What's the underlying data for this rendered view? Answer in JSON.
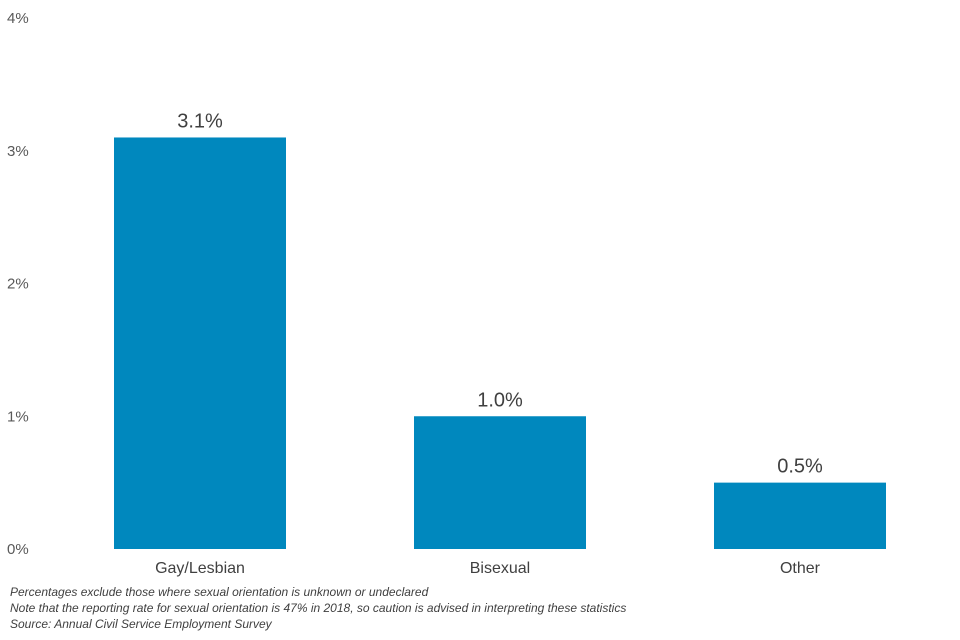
{
  "chart_data": {
    "type": "bar",
    "categories": [
      "Gay/Lesbian",
      "Bisexual",
      "Other"
    ],
    "values": [
      3.1,
      1.0,
      0.5
    ],
    "data_labels": [
      "3.1%",
      "1.0%",
      "0.5%"
    ],
    "title": "",
    "xlabel": "",
    "ylabel": "",
    "ylim": [
      0,
      4
    ],
    "y_ticks": [
      0,
      1,
      2,
      3,
      4
    ],
    "y_tick_labels": [
      "0%",
      "1%",
      "2%",
      "3%",
      "4%"
    ],
    "grid": false,
    "bar_color": "#0088BE"
  },
  "footnotes": {
    "line1": "Percentages exclude those where  sexual orientation  is unknown  or undeclared",
    "line2": "Note that the reporting rate for sexual orientation is 47% in 2018, so caution is advised in interpreting these statistics",
    "source": "Source: Annual Civil Service Employment Survey"
  }
}
